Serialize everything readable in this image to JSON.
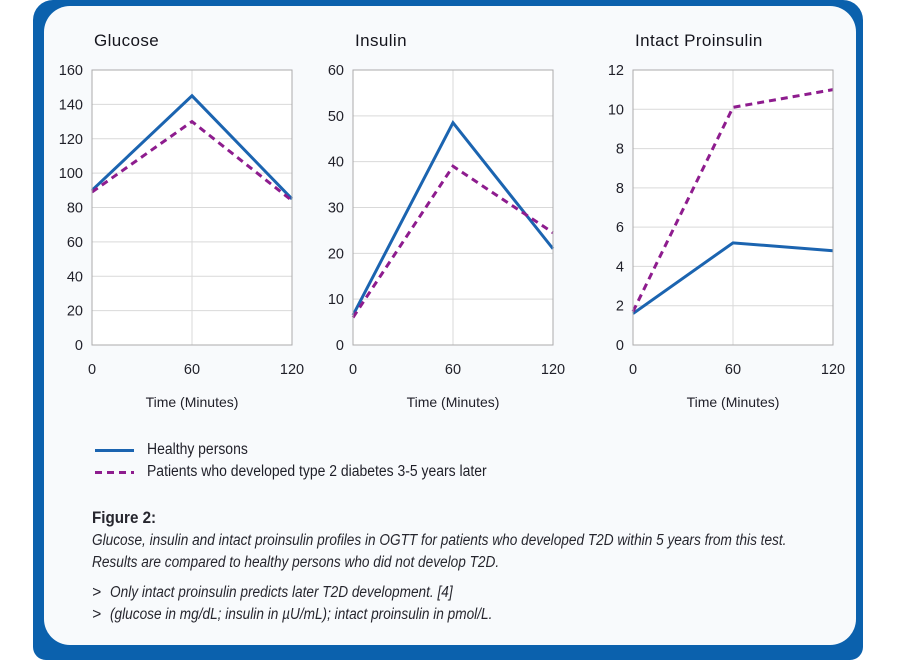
{
  "colors": {
    "frame_blue": "#0b61ad",
    "card_bg": "#f8fafc",
    "healthy": "#1b64b0",
    "patients": "#8e1c8e",
    "grid": "#d9d9d9",
    "plot_border": "#ababab",
    "text": "#1f1f28"
  },
  "chart_data": [
    {
      "type": "line",
      "title": "Glucose",
      "unit": "mg/dL",
      "xlabel": "Time (Minutes)",
      "x": [
        0,
        60,
        120
      ],
      "xlim": [
        0,
        120
      ],
      "xticks": [
        {
          "pos": 0,
          "label": "0"
        },
        {
          "pos": 60,
          "label": "60"
        },
        {
          "pos": 120,
          "label": "120"
        }
      ],
      "ylim": [
        0,
        160
      ],
      "yticks": [
        {
          "pos": 0,
          "label": "0"
        },
        {
          "pos": 20,
          "label": "20"
        },
        {
          "pos": 40,
          "label": "40"
        },
        {
          "pos": 60,
          "label": "60"
        },
        {
          "pos": 80,
          "label": "80"
        },
        {
          "pos": 100,
          "label": "100"
        },
        {
          "pos": 120,
          "label": "120"
        },
        {
          "pos": 140,
          "label": "140"
        },
        {
          "pos": 160,
          "label": "160"
        }
      ],
      "grid": true,
      "legend_position": "shared-below-charts",
      "series": [
        {
          "name": "Healthy persons",
          "color_key": "healthy",
          "style": "solid",
          "values": [
            90,
            145,
            85
          ]
        },
        {
          "name": "Patients who developed type 2 diabetes 3-5 years later",
          "color_key": "patients",
          "style": "dashed",
          "values": [
            89,
            130,
            84
          ]
        }
      ]
    },
    {
      "type": "line",
      "title": "Insulin",
      "unit": "µU/mL",
      "xlabel": "Time (Minutes)",
      "x": [
        0,
        60,
        120
      ],
      "xlim": [
        0,
        120
      ],
      "xticks": [
        {
          "pos": 0,
          "label": "0"
        },
        {
          "pos": 60,
          "label": "60"
        },
        {
          "pos": 120,
          "label": "120"
        }
      ],
      "ylim": [
        0,
        60
      ],
      "yticks": [
        {
          "pos": 0,
          "label": "0"
        },
        {
          "pos": 10,
          "label": "10"
        },
        {
          "pos": 20,
          "label": "20"
        },
        {
          "pos": 30,
          "label": "30"
        },
        {
          "pos": 40,
          "label": "40"
        },
        {
          "pos": 50,
          "label": "50"
        },
        {
          "pos": 60,
          "label": "60"
        }
      ],
      "grid": true,
      "legend_position": "shared-below-charts",
      "series": [
        {
          "name": "Healthy persons",
          "color_key": "healthy",
          "style": "solid",
          "values": [
            6.5,
            48.5,
            21
          ]
        },
        {
          "name": "Patients who developed type 2 diabetes 3-5 years later",
          "color_key": "patients",
          "style": "dashed",
          "values": [
            6,
            39,
            24.5
          ]
        }
      ]
    },
    {
      "type": "line",
      "title": "Intact Proinsulin",
      "unit": "pmol/L",
      "xlabel": "Time (Minutes)",
      "x": [
        0,
        60,
        120
      ],
      "xlim": [
        0,
        120
      ],
      "xticks": [
        {
          "pos": 0,
          "label": "0"
        },
        {
          "pos": 60,
          "label": "60"
        },
        {
          "pos": 120,
          "label": "120"
        }
      ],
      "ylim": [
        0,
        14
      ],
      "yticks": [
        {
          "pos": 0,
          "label": "0"
        },
        {
          "pos": 2,
          "label": "2"
        },
        {
          "pos": 4,
          "label": "4"
        },
        {
          "pos": 6,
          "label": "6"
        },
        {
          "pos": 8,
          "label": "8"
        },
        {
          "pos": 10,
          "label": "8"
        },
        {
          "pos": 12,
          "label": "10"
        },
        {
          "pos": 14,
          "label": "12"
        }
      ],
      "axis_note": "The printed y-axis shows the tick label 8 twice (0,2,4,6,8,8,10,12); plot_values give positions on that printed 8-tick axis.",
      "grid": true,
      "legend_position": "shared-below-charts",
      "series": [
        {
          "name": "Healthy persons",
          "color_key": "healthy",
          "style": "solid",
          "values": [
            1.6,
            5.2,
            4.8
          ],
          "plot_values": [
            1.6,
            5.2,
            4.8
          ]
        },
        {
          "name": "Patients who developed type 2 diabetes 3-5 years later",
          "color_key": "patients",
          "style": "dashed",
          "values": [
            1.7,
            10.1,
            11
          ],
          "plot_values": [
            1.7,
            12.1,
            13
          ]
        }
      ]
    }
  ],
  "figure": {
    "legend": {
      "items": [
        {
          "label": "Healthy persons",
          "color_key": "healthy",
          "style": "solid"
        },
        {
          "label": "Patients who developed type 2 diabetes 3-5 years later",
          "color_key": "patients",
          "style": "dashed"
        }
      ]
    },
    "caption": {
      "heading": "Figure 2:",
      "lines": [
        "Glucose, insulin and intact proinsulin profiles in OGTT for patients who developed T2D within 5 years from this test.",
        "Results are compared to healthy persons who did not develop T2D."
      ],
      "bullets": [
        {
          "marker": ">",
          "text": "Only intact proinsulin predicts later T2D development. [4]"
        },
        {
          "marker": ">",
          "text": "(glucose in mg/dL; insulin in µU/mL); intact proinsulin in pmol/L."
        }
      ]
    }
  }
}
